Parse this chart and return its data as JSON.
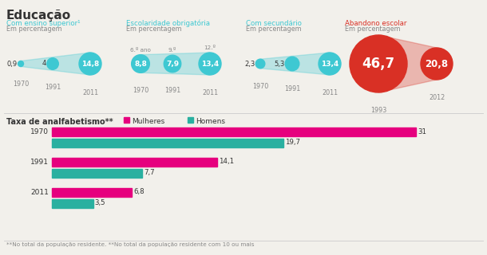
{
  "title": "Educação",
  "bg_color": "#f2f0eb",
  "sections": [
    {
      "label": "Com ensino superior¹",
      "sublabel": "Em percentagem",
      "color": "#3ec8d2",
      "years": [
        "1970",
        "1991",
        "2011"
      ],
      "values": [
        0.9,
        4,
        14.8
      ],
      "year_labels": [],
      "show_year_labels": false,
      "type": "funnel"
    },
    {
      "label": "Escolaridade obrigatória",
      "sublabel": "Em percentagem",
      "color": "#3ec8d2",
      "years": [
        "1970",
        "1991",
        "2011"
      ],
      "values": [
        8.8,
        7.9,
        13.4
      ],
      "year_labels": [
        "6.º ano",
        "9.º",
        "12.º"
      ],
      "show_year_labels": true,
      "type": "funnel"
    },
    {
      "label": "Com secundário",
      "sublabel": "Em percentagem",
      "color": "#3ec8d2",
      "years": [
        "1970",
        "1991",
        "2011"
      ],
      "values": [
        2.3,
        5.3,
        13.4
      ],
      "year_labels": [],
      "show_year_labels": false,
      "type": "funnel"
    },
    {
      "label": "Abandono escolar",
      "sublabel": "Em percentagem",
      "color": "#d93025",
      "years": [
        "1993",
        "2012"
      ],
      "values": [
        46.7,
        20.8
      ],
      "year_labels": [],
      "show_year_labels": false,
      "type": "circles"
    }
  ],
  "bar_title": "Taxa de analfabetismo**",
  "bar_legend": [
    "Mulheres",
    "Homens"
  ],
  "bar_colors": [
    "#e6007e",
    "#2ab0a0"
  ],
  "bar_years": [
    "1970",
    "1991",
    "2011"
  ],
  "bar_mulheres": [
    31,
    14.1,
    6.8
  ],
  "bar_homens": [
    19.7,
    7.7,
    3.5
  ],
  "footnote": "**No total da população residente. **No total da população residente com 10 ou mais",
  "label_color_teal": "#3ec8d2",
  "label_color_red": "#d93025",
  "text_color_dark": "#333333",
  "text_color_gray": "#888888",
  "divider_color": "#cccccc"
}
